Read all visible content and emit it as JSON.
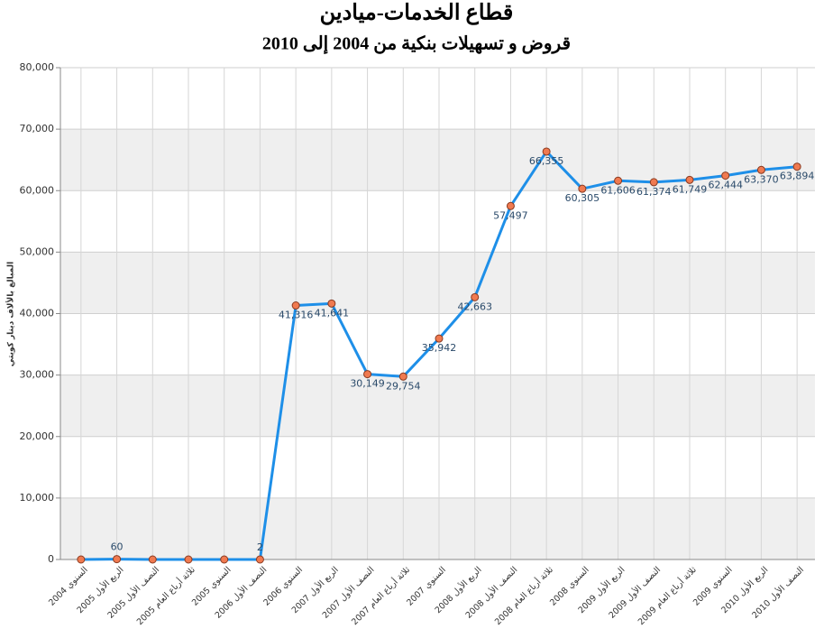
{
  "chart_data": {
    "type": "line",
    "title": "قطاع الخدمات-ميادين",
    "subtitle": "قروض و تسهيلات بنكية من 2004 إلى 2010",
    "y_label": "المبالغ بالألاف دينار كويتي",
    "categories": [
      "السنوي 2004",
      "الربع الأول 2005",
      "النصف الأول 2005",
      "ثلاثة أرباع العام 2005",
      "السنوي 2005",
      "النصف الأول 2006",
      "السنوي 2006",
      "الربع الأول 2007",
      "النصف الأول 2007",
      "ثلاثة أرباع العام 2007",
      "السنوي 2007",
      "الربع الأول 2008",
      "النصف الأول 2008",
      "ثلاثة أرباع العام 2008",
      "السنوي 2008",
      "الربع الأول 2009",
      "النصف الأول 2009",
      "ثلاثة أرباع العام 2009",
      "السنوي 2009",
      "الربع الأول 2010",
      "النصف الأول 2010"
    ],
    "values": [
      0,
      60,
      0,
      0,
      0,
      2,
      41316,
      41641,
      30149,
      29754,
      35942,
      42663,
      57497,
      66355,
      60305,
      61606,
      61374,
      61749,
      62444,
      63370,
      63894
    ],
    "value_labels": [
      null,
      "60",
      null,
      null,
      null,
      "2",
      "41,316",
      "41,641",
      "30,149",
      "29,754",
      "35,942",
      "42,663",
      "57,497",
      "66,355",
      "60,305",
      "61,606",
      "61,374",
      "61,749",
      "62,444",
      "63,370",
      "63,894"
    ],
    "color": "#1e8fe8",
    "marker_color": "#f07a50",
    "ylim": [
      0,
      80000
    ],
    "yticks": [
      {
        "value": 0,
        "label": "0"
      },
      {
        "value": 10000,
        "label": "10,000"
      },
      {
        "value": 20000,
        "label": "20,000"
      },
      {
        "value": 30000,
        "label": "30,000"
      },
      {
        "value": 40000,
        "label": "40,000"
      },
      {
        "value": 50000,
        "label": "50,000"
      },
      {
        "value": 60000,
        "label": "60,000"
      },
      {
        "value": 70000,
        "label": "70,000"
      },
      {
        "value": 80000,
        "label": "80,000"
      }
    ],
    "grid": true
  }
}
